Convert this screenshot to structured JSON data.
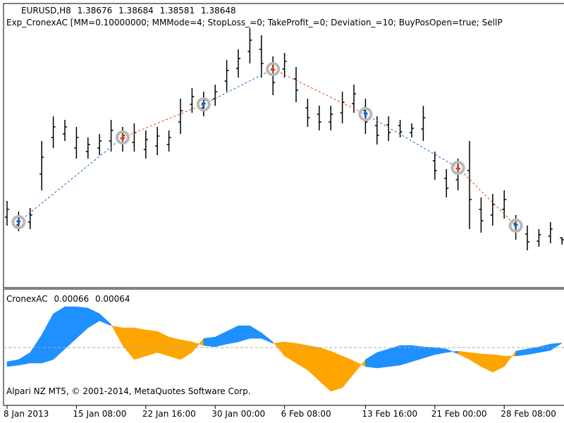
{
  "chart_data": [
    {
      "type": "ohlc",
      "title": "EURUSD,H8",
      "subtitle": "Exp_CronexAC [MM=0.10000000; MMMode=4; StopLoss_=0; TakeProfit_=0; Deviation_=10; BuyPosOpen=true; SellP",
      "categories": [
        "8 Jan 2013",
        null,
        null,
        null,
        null,
        null,
        "15 Jan 08:00",
        null,
        null,
        null,
        null,
        null,
        "22 Jan 16:00",
        null,
        null,
        null,
        null,
        null,
        "30 Jan 00:00",
        null,
        null,
        null,
        null,
        null,
        "6 Feb 08:00",
        null,
        null,
        null,
        null,
        null,
        null,
        "13 Feb 16:00",
        null,
        null,
        null,
        null,
        null,
        "21 Feb 00:00",
        null,
        null,
        null,
        null,
        null,
        "28 Feb 08:00",
        null,
        null,
        null,
        null,
        null
      ],
      "open": [
        1.3897,
        1.3886,
        1.389,
        1.3958,
        1.401,
        1.4015,
        1.3995,
        1.399,
        1.3995,
        1.4005,
        1.4002,
        1.4003,
        1.3993,
        1.3998,
        1.4,
        1.4032,
        1.4057,
        1.4052,
        1.4065,
        1.409,
        1.4108,
        1.4132,
        1.4135,
        1.4107,
        1.4107,
        1.4093,
        1.4052,
        1.4043,
        1.4032,
        1.4045,
        1.4058,
        1.4048,
        1.4027,
        1.4028,
        1.4027,
        1.4017,
        1.4022,
        1.3977,
        1.3952,
        1.395,
        1.3963,
        1.3908,
        1.39,
        1.3908,
        1.3888,
        1.3873,
        1.3863,
        1.387,
        1.38676
      ],
      "high": [
        1.392,
        1.3905,
        1.391,
        1.4005,
        1.404,
        1.4035,
        1.4025,
        1.401,
        1.4015,
        1.4035,
        1.4025,
        1.403,
        1.402,
        1.4025,
        1.402,
        1.4065,
        1.408,
        1.4075,
        1.4085,
        1.412,
        1.4135,
        1.4165,
        1.4155,
        1.4125,
        1.413,
        1.411,
        1.4065,
        1.4055,
        1.4055,
        1.4075,
        1.4085,
        1.4065,
        1.404,
        1.404,
        1.4035,
        1.403,
        1.4055,
        1.399,
        1.3965,
        1.398,
        1.4005,
        1.3925,
        1.393,
        1.3935,
        1.39,
        1.3885,
        1.388,
        1.389,
        1.38684
      ],
      "low": [
        1.3885,
        1.3877,
        1.388,
        1.3935,
        1.3995,
        1.4005,
        1.398,
        1.398,
        1.3985,
        1.399,
        1.399,
        1.399,
        1.398,
        1.3985,
        1.399,
        1.4015,
        1.4045,
        1.404,
        1.4055,
        1.4075,
        1.4095,
        1.4115,
        1.4095,
        1.407,
        1.4095,
        1.406,
        1.4025,
        1.402,
        1.402,
        1.403,
        1.4045,
        1.4015,
        1.4,
        1.4005,
        1.401,
        1.401,
        1.4005,
        1.395,
        1.3925,
        1.3935,
        1.388,
        1.3875,
        1.3885,
        1.3895,
        1.3865,
        1.385,
        1.3855,
        1.386,
        1.38581
      ],
      "close": [
        1.3908,
        1.3896,
        1.39,
        1.3982,
        1.4025,
        1.4025,
        1.401,
        1.4,
        1.4005,
        1.402,
        1.4013,
        1.4017,
        1.4007,
        1.4012,
        1.401,
        1.4048,
        1.4068,
        1.4063,
        1.4075,
        1.4105,
        1.4122,
        1.4148,
        1.4115,
        1.4088,
        1.4118,
        1.4077,
        1.4038,
        1.4032,
        1.4043,
        1.406,
        1.4072,
        1.4032,
        1.4013,
        1.4017,
        1.4018,
        1.4023,
        1.4038,
        1.3963,
        1.3938,
        1.3965,
        1.3922,
        1.3892,
        1.3915,
        1.3922,
        1.3877,
        1.3862,
        1.3872,
        1.388,
        1.38648
      ],
      "color": "#000000",
      "buy_signals": {
        "color": "#1565c0",
        "values": [
          null,
          1.389,
          null,
          null,
          null,
          null,
          null,
          null,
          null,
          null,
          null,
          null,
          null,
          null,
          null,
          null,
          null,
          1.4057,
          null,
          null,
          null,
          null,
          null,
          null,
          null,
          null,
          null,
          null,
          null,
          null,
          null,
          1.4043,
          null,
          null,
          null,
          null,
          null,
          null,
          null,
          null,
          null,
          null,
          null,
          null,
          1.3885,
          null,
          null,
          null,
          null
        ]
      },
      "sell_signals": {
        "color": "#d84315",
        "values": [
          null,
          null,
          null,
          null,
          null,
          null,
          null,
          null,
          null,
          null,
          1.401,
          null,
          null,
          null,
          null,
          null,
          null,
          null,
          null,
          null,
          null,
          null,
          null,
          1.4107,
          null,
          null,
          null,
          null,
          null,
          null,
          null,
          null,
          null,
          null,
          null,
          null,
          null,
          null,
          null,
          1.3967,
          null,
          null,
          null,
          null,
          null,
          null,
          null,
          null,
          null
        ]
      },
      "ylim": [
        1.38,
        1.42
      ]
    },
    {
      "type": "band",
      "title": "CronexAC",
      "footer": "Alpari NZ MT5, © 2001-2014, MetaQuotes Software Corp.",
      "lines": [
        {
          "values": [
            -0.002,
            -0.0017,
            -0.0007,
            0.0018,
            0.0048,
            0.0058,
            0.0058,
            0.0056,
            0.0048,
            0.0033,
            0.0003,
            -0.0017,
            -0.0012,
            -0.0007,
            -0.0012,
            -0.0017,
            -0.0007,
            0.0013,
            0.0015,
            0.0023,
            0.0031,
            0.0031,
            0.0021,
            0.0008,
            -0.0012,
            -0.0022,
            -0.0032,
            -0.0047,
            -0.0062,
            -0.0057,
            -0.0037,
            -0.0017,
            -0.0007,
            -0.0002,
            0.0003,
            0.0003,
            0.0001,
            0,
            -0.0002,
            -0.0009,
            -0.0017,
            -0.0027,
            -0.0035,
            -0.0027,
            -0.0005,
            -0.0002,
            0.0001,
            0.0005,
            0.00066
          ]
        },
        {
          "values": [
            -0.0027,
            -0.0025,
            -0.0022,
            -0.0022,
            -0.0017,
            -0.0002,
            0.0013,
            0.0028,
            0.0038,
            0.0031,
            0.0028,
            0.0028,
            0.0025,
            0.0023,
            0.0015,
            0.0011,
            0.0008,
            0.0003,
            0.0001,
            0.0005,
            0.0008,
            0.0013,
            0.0013,
            0.0006,
            0.0008,
            0.0006,
            0.0003,
            0,
            -0.0005,
            -0.0012,
            -0.0019,
            -0.0027,
            -0.0029,
            -0.0027,
            -0.0025,
            -0.002,
            -0.0015,
            -0.001,
            -0.0007,
            -0.0005,
            -0.0007,
            -0.0009,
            -0.001,
            -0.0012,
            -0.0012,
            -0.001,
            -0.0007,
            -0.0004,
            0.00064
          ]
        }
      ],
      "up_color": "#1e90ff",
      "down_color": "#ffa500",
      "baseline": 0,
      "baseline_color": "#aaaaaa",
      "ylim": [
        -0.008,
        0.008
      ]
    }
  ]
}
